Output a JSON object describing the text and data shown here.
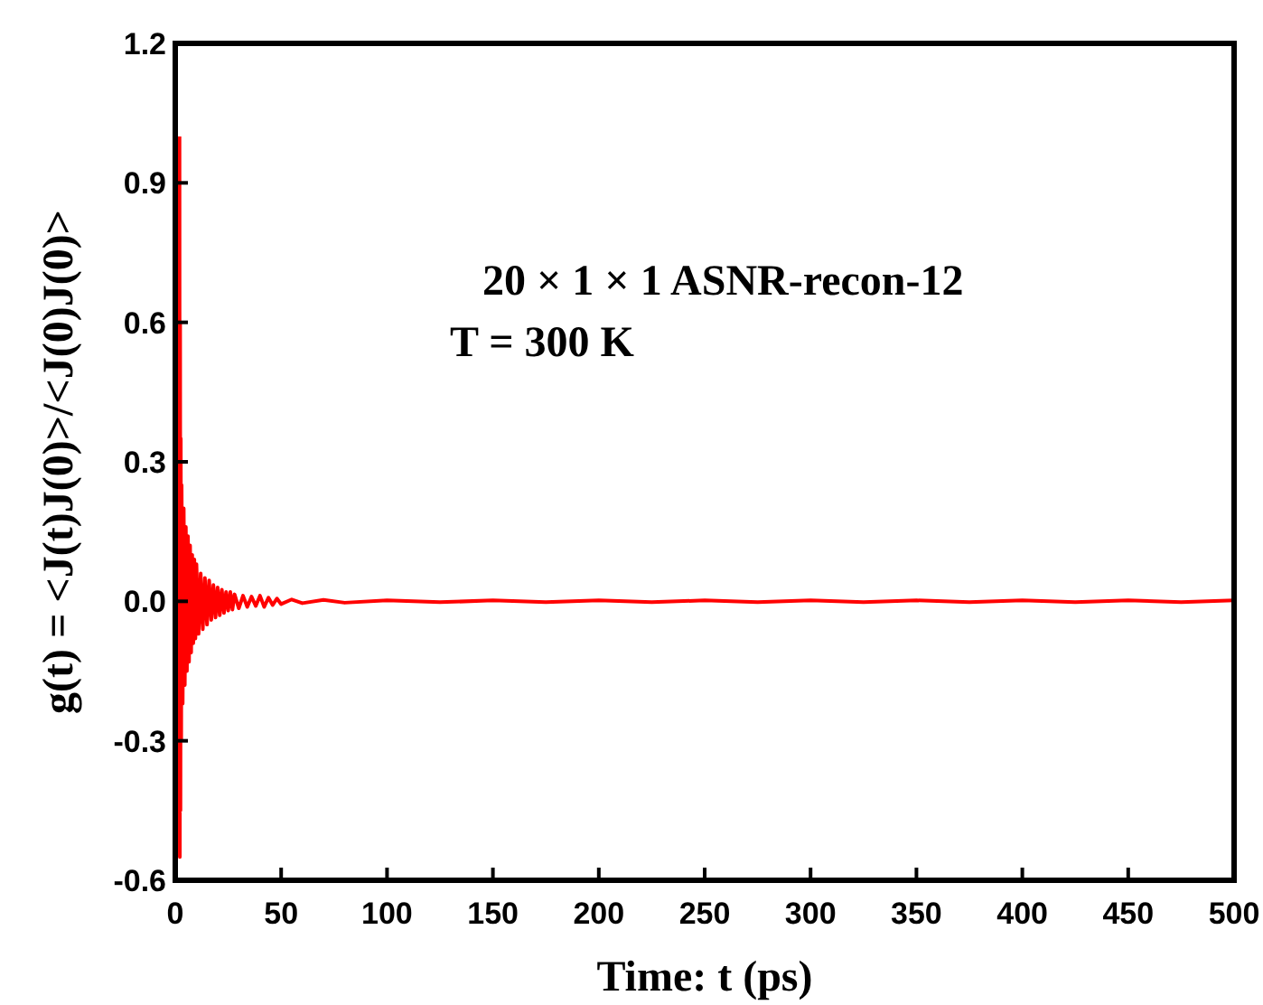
{
  "chart_data": {
    "type": "line",
    "xlabel": "Time: t (ps)",
    "ylabel": "g(t) = <J(t)J(0)>/<J(0)J(0)>",
    "xlim": [
      0,
      500
    ],
    "xticks": [
      0,
      50,
      100,
      150,
      200,
      250,
      300,
      350,
      400,
      450,
      500
    ],
    "ylim": [
      -0.6,
      1.2
    ],
    "yticks": [
      {
        "value": -0.6,
        "label": "-0.6"
      },
      {
        "value": -0.3,
        "label": "-0.3"
      },
      {
        "value": 0,
        "label": "0.0"
      },
      {
        "value": 0.3,
        "label": "0.3"
      },
      {
        "value": 0.6,
        "label": "0.6"
      },
      {
        "value": 0.9,
        "label": "0.9"
      },
      {
        "value": 1.2,
        "label": "1.2"
      }
    ],
    "grid": false,
    "marker": "none",
    "line_style": "solid",
    "annotations": [
      "20 × 1 × 1  ASNR-recon-12",
      "T = 300 K"
    ],
    "series": [
      {
        "color": "#ff0000",
        "x": [
          2,
          2.15,
          2.3,
          2.45,
          2.6,
          2.8,
          3,
          3.5,
          4,
          4.5,
          5,
          5.5,
          6,
          6.5,
          7,
          7.5,
          8,
          8.5,
          9,
          9.5,
          10,
          11,
          12,
          13,
          14,
          15,
          16,
          17,
          18,
          19,
          20,
          21,
          22,
          23,
          24,
          25,
          26,
          27,
          28,
          30,
          32,
          34,
          36,
          38,
          40,
          42,
          44,
          46,
          48,
          50,
          55,
          60,
          70,
          80,
          100,
          125,
          150,
          175,
          200,
          225,
          250,
          275,
          300,
          325,
          350,
          375,
          400,
          425,
          450,
          475,
          500
        ],
        "values": [
          1.0,
          -0.55,
          0.6,
          -0.45,
          0.35,
          -0.3,
          0.25,
          -0.22,
          0.2,
          -0.18,
          0.16,
          -0.15,
          0.14,
          -0.13,
          0.12,
          -0.11,
          0.1,
          -0.09,
          0.09,
          -0.08,
          0.08,
          -0.07,
          0.06,
          -0.06,
          0.05,
          -0.05,
          0.045,
          -0.04,
          0.035,
          -0.035,
          0.03,
          -0.03,
          0.025,
          -0.025,
          0.02,
          -0.02,
          0.02,
          -0.018,
          0.015,
          -0.015,
          0.012,
          -0.012,
          0.01,
          -0.01,
          0.012,
          -0.012,
          0.008,
          -0.008,
          0.006,
          -0.006,
          0.004,
          -0.004,
          0.003,
          -0.003,
          0.002,
          -0.002,
          0.002,
          -0.002,
          0.002,
          -0.002,
          0.002,
          -0.002,
          0.002,
          -0.002,
          0.002,
          -0.002,
          0.002,
          -0.002,
          0.002,
          -0.002,
          0.002
        ]
      }
    ]
  }
}
